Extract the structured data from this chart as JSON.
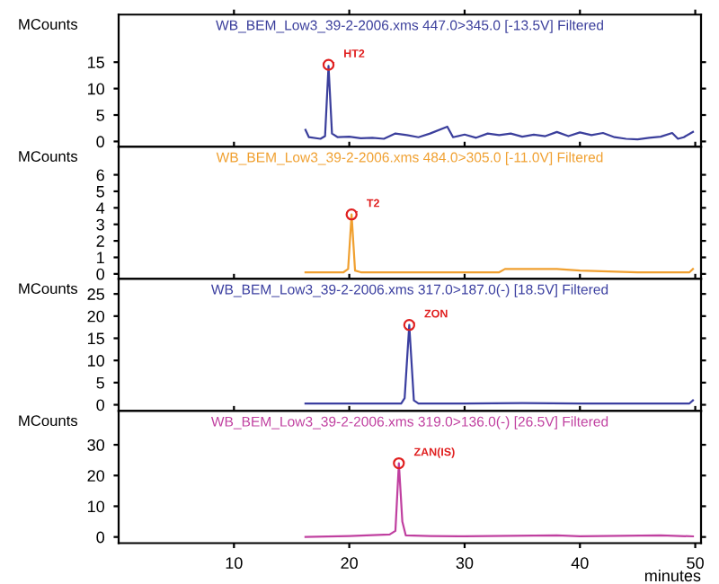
{
  "chart_data": [
    {
      "type": "line",
      "title": "WB_BEM_Low3_39-2-2006.xms 447.0>345.0 [-13.5V] Filtered",
      "ylabel": "MCounts",
      "xlim": [
        0,
        50.5
      ],
      "ylim": [
        -1,
        24
      ],
      "xticks": [
        10,
        20,
        30,
        40,
        50
      ],
      "yticks": [
        0,
        5,
        10,
        15
      ],
      "tick_labels": "y",
      "grid": false,
      "legend": false,
      "marker": "none",
      "series": [
        {
          "color": "#3b3f9c",
          "x": [
            16.2,
            16.5,
            17.5,
            17.9,
            18.2,
            18.5,
            19,
            20,
            21,
            22,
            23,
            24,
            25,
            26,
            27,
            28.5,
            29,
            30,
            31,
            32,
            33,
            34,
            35,
            36,
            37,
            38,
            39,
            40,
            41,
            42,
            43,
            44,
            45,
            46,
            47,
            48,
            48.5,
            49,
            49.8
          ],
          "values": [
            2.2,
            0.8,
            0.5,
            1,
            14.3,
            1.5,
            0.8,
            0.9,
            0.6,
            0.7,
            0.5,
            1.5,
            1.2,
            0.8,
            1.5,
            2.8,
            0.8,
            1.3,
            0.7,
            1.5,
            1.2,
            1.5,
            0.9,
            1.3,
            1.0,
            1.8,
            1.0,
            1.7,
            1.2,
            1.6,
            0.8,
            0.5,
            0.4,
            0.7,
            0.9,
            1.6,
            0.5,
            0.8,
            1.8
          ]
        }
      ],
      "annotations": [
        {
          "text": "HT2",
          "x": 18.2,
          "y": 14.5
        }
      ]
    },
    {
      "type": "line",
      "title": "WB_BEM_Low3_39-2-2006.xms 484.0>305.0 [-11.0V] Filtered",
      "ylabel": "MCounts",
      "xlim": [
        0,
        50.5
      ],
      "ylim": [
        -0.3,
        7.7
      ],
      "xticks": [
        10,
        20,
        30,
        40,
        50
      ],
      "yticks": [
        0,
        1,
        2,
        3,
        4,
        5,
        6
      ],
      "tick_labels": "y",
      "grid": false,
      "legend": false,
      "marker": "none",
      "series": [
        {
          "color": "#f0a030",
          "x": [
            16.2,
            19.5,
            19.9,
            20.2,
            20.5,
            21,
            25,
            30,
            33,
            33.5,
            36,
            38,
            40,
            45,
            49.5,
            49.8
          ],
          "values": [
            0.1,
            0.1,
            0.3,
            3.6,
            0.2,
            0.1,
            0.1,
            0.1,
            0.1,
            0.3,
            0.3,
            0.3,
            0.2,
            0.1,
            0.1,
            0.3
          ]
        }
      ],
      "annotations": [
        {
          "text": "T2",
          "x": 20.2,
          "y": 3.6
        }
      ]
    },
    {
      "type": "line",
      "title": "WB_BEM_Low3_39-2-2006.xms 317.0>187.0(-) [18.5V] Filtered",
      "ylabel": "MCounts",
      "xlim": [
        0,
        50.5
      ],
      "ylim": [
        -1.4,
        28.4
      ],
      "xticks": [
        10,
        20,
        30,
        40,
        50
      ],
      "yticks": [
        0,
        5,
        10,
        15,
        20,
        25
      ],
      "tick_labels": "y",
      "grid": false,
      "legend": false,
      "marker": "none",
      "series": [
        {
          "color": "#3b3fa0",
          "x": [
            16.2,
            20,
            24.5,
            24.8,
            25.2,
            25.6,
            26,
            30,
            35,
            40,
            49.5,
            49.8
          ],
          "values": [
            0.3,
            0.3,
            0.3,
            1.5,
            18,
            1,
            0.3,
            0.3,
            0.4,
            0.3,
            0.3,
            1.0
          ]
        }
      ],
      "annotations": [
        {
          "text": "ZON",
          "x": 25.2,
          "y": 18
        }
      ]
    },
    {
      "type": "line",
      "title": "WB_BEM_Low3_39-2-2006.xms 319.0>136.0(-) [26.5V] Filtered",
      "ylabel": "MCounts",
      "xlabel": "minutes",
      "xlim": [
        0,
        50.5
      ],
      "ylim": [
        -2,
        41
      ],
      "xticks": [
        10,
        20,
        30,
        40,
        50
      ],
      "yticks": [
        0,
        10,
        20,
        30
      ],
      "grid": false,
      "legend": false,
      "marker": "none",
      "series": [
        {
          "color": "#c040a0",
          "x": [
            16.2,
            20,
            23.5,
            24.0,
            24.3,
            24.6,
            24.9,
            27,
            30,
            38,
            40,
            47,
            49.8
          ],
          "values": [
            0,
            0.3,
            0.8,
            2,
            24,
            5,
            0.5,
            0.3,
            0.2,
            0.5,
            0.2,
            0.5,
            0.2
          ]
        }
      ],
      "annotations": [
        {
          "text": "ZAN(IS)",
          "x": 24.3,
          "y": 24
        }
      ]
    }
  ]
}
